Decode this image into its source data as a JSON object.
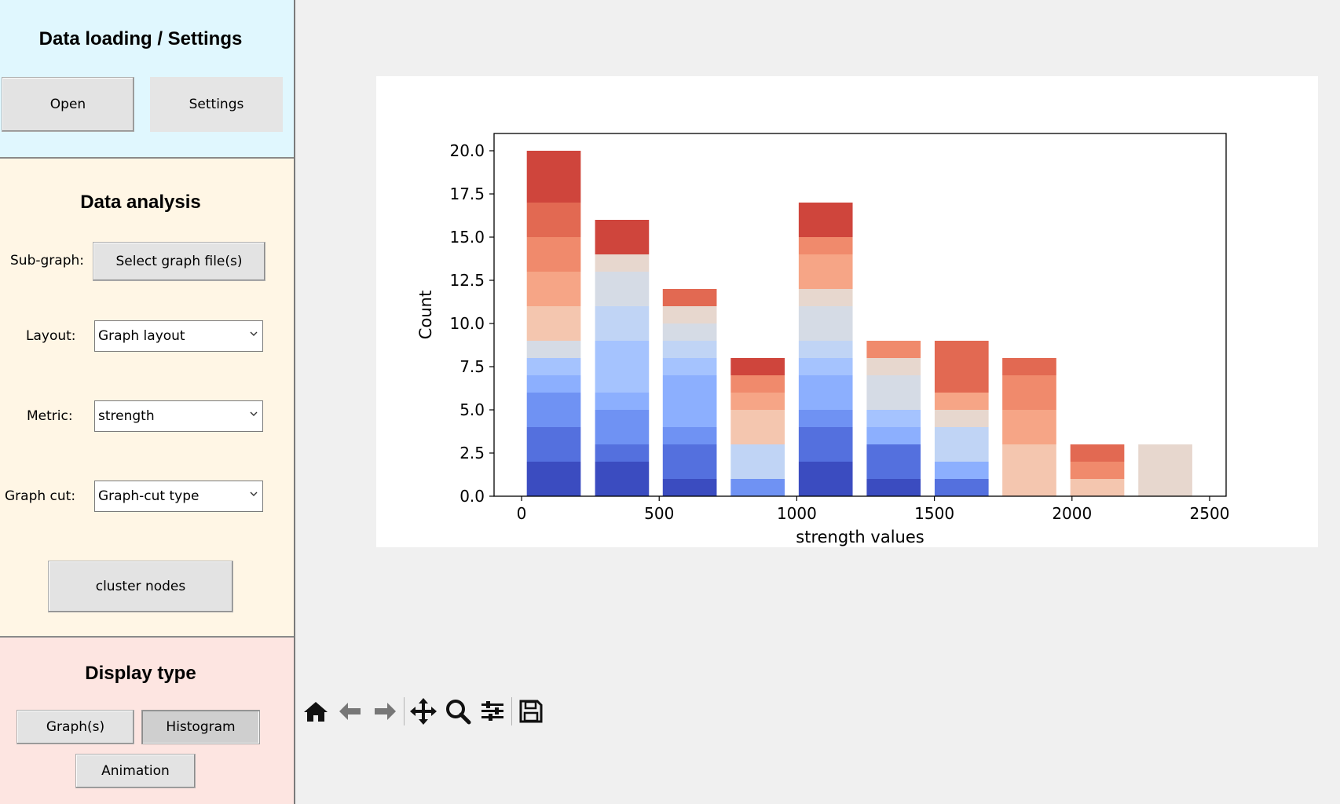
{
  "sidebar": {
    "loading": {
      "title": "Data loading / Settings",
      "open_label": "Open",
      "settings_label": "Settings"
    },
    "analysis": {
      "title": "Data analysis",
      "subgraph_label": "Sub-graph:",
      "select_files_label": "Select graph file(s)",
      "layout_label": "Layout:",
      "layout_value": "Graph layout",
      "metric_label": "Metric:",
      "metric_value": "strength",
      "graphcut_label": "Graph cut:",
      "graphcut_value": "Graph-cut type",
      "cluster_label": "cluster nodes"
    },
    "display": {
      "title": "Display type",
      "graphs_label": "Graph(s)",
      "histogram_label": "Histogram",
      "animation_label": "Animation"
    }
  },
  "toolbar": {
    "icons": [
      "home-icon",
      "back-icon",
      "forward-icon",
      "pan-icon",
      "zoom-icon",
      "configure-icon",
      "save-icon"
    ]
  },
  "chart_data": {
    "type": "bar",
    "stacked": true,
    "xlabel": "strength values",
    "ylabel": "Count",
    "xlim": [
      -100,
      2560
    ],
    "ylim": [
      0,
      21
    ],
    "xticks": [
      0,
      500,
      1000,
      1500,
      2000,
      2500
    ],
    "xtick_labels": [
      "0",
      "500",
      "1000",
      "1500",
      "2000",
      "2500"
    ],
    "yticks": [
      0,
      2.5,
      5,
      7.5,
      10,
      12.5,
      15,
      17.5,
      20
    ],
    "ytick_labels": [
      "0.0",
      "2.5",
      "5.0",
      "7.5",
      "10.0",
      "12.5",
      "15.0",
      "17.5",
      "20.0"
    ],
    "bar_width": 196,
    "bars": [
      {
        "x": 117,
        "segments": [
          {
            "v": 2,
            "c": "#3b4cc0"
          },
          {
            "v": 2,
            "c": "#5470de"
          },
          {
            "v": 2,
            "c": "#6f92f3"
          },
          {
            "v": 1,
            "c": "#8caffe"
          },
          {
            "v": 1,
            "c": "#a5c3fe"
          },
          {
            "v": 1,
            "c": "#d5dbe5"
          },
          {
            "v": 2,
            "c": "#f4c6af"
          },
          {
            "v": 2,
            "c": "#f6a586"
          },
          {
            "v": 2,
            "c": "#f08a6c"
          },
          {
            "v": 2,
            "c": "#e26952"
          },
          {
            "v": 3,
            "c": "#cf453c"
          }
        ]
      },
      {
        "x": 365,
        "segments": [
          {
            "v": 2,
            "c": "#3b4cc0"
          },
          {
            "v": 1,
            "c": "#5470de"
          },
          {
            "v": 2,
            "c": "#6f92f3"
          },
          {
            "v": 1,
            "c": "#8caffe"
          },
          {
            "v": 3,
            "c": "#a5c3fe"
          },
          {
            "v": 2,
            "c": "#c0d4f5"
          },
          {
            "v": 2,
            "c": "#d5dbe5"
          },
          {
            "v": 1,
            "c": "#e7d7ce"
          },
          {
            "v": 2,
            "c": "#cf453c"
          }
        ]
      },
      {
        "x": 611,
        "segments": [
          {
            "v": 1,
            "c": "#3b4cc0"
          },
          {
            "v": 2,
            "c": "#5470de"
          },
          {
            "v": 1,
            "c": "#6f92f3"
          },
          {
            "v": 3,
            "c": "#8caffe"
          },
          {
            "v": 1,
            "c": "#a5c3fe"
          },
          {
            "v": 1,
            "c": "#c0d4f5"
          },
          {
            "v": 1,
            "c": "#d5dbe5"
          },
          {
            "v": 1,
            "c": "#e7d7ce"
          },
          {
            "v": 1,
            "c": "#e26952"
          }
        ]
      },
      {
        "x": 858,
        "segments": [
          {
            "v": 1,
            "c": "#6f92f3"
          },
          {
            "v": 2,
            "c": "#c0d4f5"
          },
          {
            "v": 2,
            "c": "#f4c6af"
          },
          {
            "v": 1,
            "c": "#f6a586"
          },
          {
            "v": 1,
            "c": "#f08a6c"
          },
          {
            "v": 1,
            "c": "#cf453c"
          }
        ]
      },
      {
        "x": 1105,
        "segments": [
          {
            "v": 2,
            "c": "#3b4cc0"
          },
          {
            "v": 2,
            "c": "#5470de"
          },
          {
            "v": 1,
            "c": "#6f92f3"
          },
          {
            "v": 2,
            "c": "#8caffe"
          },
          {
            "v": 1,
            "c": "#a5c3fe"
          },
          {
            "v": 1,
            "c": "#c0d4f5"
          },
          {
            "v": 2,
            "c": "#d5dbe5"
          },
          {
            "v": 1,
            "c": "#e7d7ce"
          },
          {
            "v": 2,
            "c": "#f6a586"
          },
          {
            "v": 1,
            "c": "#f08a6c"
          },
          {
            "v": 2,
            "c": "#cf453c"
          }
        ]
      },
      {
        "x": 1352,
        "segments": [
          {
            "v": 1,
            "c": "#3b4cc0"
          },
          {
            "v": 2,
            "c": "#5470de"
          },
          {
            "v": 1,
            "c": "#8caffe"
          },
          {
            "v": 1,
            "c": "#a5c3fe"
          },
          {
            "v": 2,
            "c": "#d5dbe5"
          },
          {
            "v": 1,
            "c": "#e7d7ce"
          },
          {
            "v": 1,
            "c": "#f08a6c"
          }
        ]
      },
      {
        "x": 1599,
        "segments": [
          {
            "v": 1,
            "c": "#5470de"
          },
          {
            "v": 1,
            "c": "#8caffe"
          },
          {
            "v": 2,
            "c": "#c0d4f5"
          },
          {
            "v": 1,
            "c": "#e7d7ce"
          },
          {
            "v": 1,
            "c": "#f6a586"
          },
          {
            "v": 3,
            "c": "#e26952"
          }
        ]
      },
      {
        "x": 1845,
        "segments": [
          {
            "v": 3,
            "c": "#f4c6af"
          },
          {
            "v": 2,
            "c": "#f6a586"
          },
          {
            "v": 2,
            "c": "#f08a6c"
          },
          {
            "v": 1,
            "c": "#e26952"
          }
        ]
      },
      {
        "x": 2092,
        "segments": [
          {
            "v": 1,
            "c": "#f4c6af"
          },
          {
            "v": 1,
            "c": "#f08a6c"
          },
          {
            "v": 1,
            "c": "#e26952"
          }
        ]
      },
      {
        "x": 2339,
        "segments": [
          {
            "v": 3,
            "c": "#e7d7ce"
          }
        ]
      }
    ]
  }
}
